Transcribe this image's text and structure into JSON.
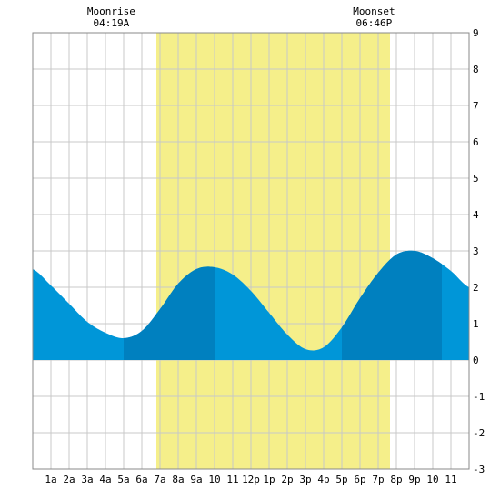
{
  "chart_data": {
    "type": "area",
    "title": "",
    "xlabel": "",
    "ylabel": "",
    "ylim": [
      -3,
      9
    ],
    "xlim": [
      0,
      24
    ],
    "grid": true,
    "y_ticks": [
      -3,
      -2,
      -1,
      0,
      1,
      2,
      3,
      4,
      5,
      6,
      7,
      8,
      9
    ],
    "x_tick_labels": [
      "1a",
      "2a",
      "3a",
      "4a",
      "5a",
      "6a",
      "7a",
      "8a",
      "9a",
      "10",
      "11",
      "12p",
      "1p",
      "2p",
      "3p",
      "4p",
      "5p",
      "6p",
      "7p",
      "8p",
      "9p",
      "10",
      "11"
    ],
    "series": [
      {
        "x": [
          0,
          1,
          2,
          3,
          4,
          5,
          6,
          7,
          8,
          9,
          10,
          11,
          12,
          13,
          14,
          15,
          16,
          17,
          18,
          19,
          20,
          21,
          22,
          23,
          24
        ],
        "values": [
          2.5,
          2.05,
          1.55,
          1.05,
          0.75,
          0.6,
          0.8,
          1.4,
          2.1,
          2.5,
          2.55,
          2.35,
          1.9,
          1.3,
          0.7,
          0.3,
          0.35,
          0.9,
          1.7,
          2.4,
          2.9,
          3.0,
          2.8,
          2.45,
          2.0
        ]
      }
    ],
    "shade_bands": [
      [
        5,
        10
      ],
      [
        17,
        22.5
      ]
    ],
    "daylight": [
      6.8,
      19.65
    ],
    "colors": {
      "tide": "#0096d8",
      "tide_dark": "#0080bf",
      "daylight": "#f5ef8a",
      "grid": "#c8c8c8"
    },
    "annotations": [
      {
        "label": "Moonrise",
        "time": "04:19A",
        "x": 4.32
      },
      {
        "label": "Moonset",
        "time": "06:46P",
        "x": 18.77
      }
    ]
  }
}
